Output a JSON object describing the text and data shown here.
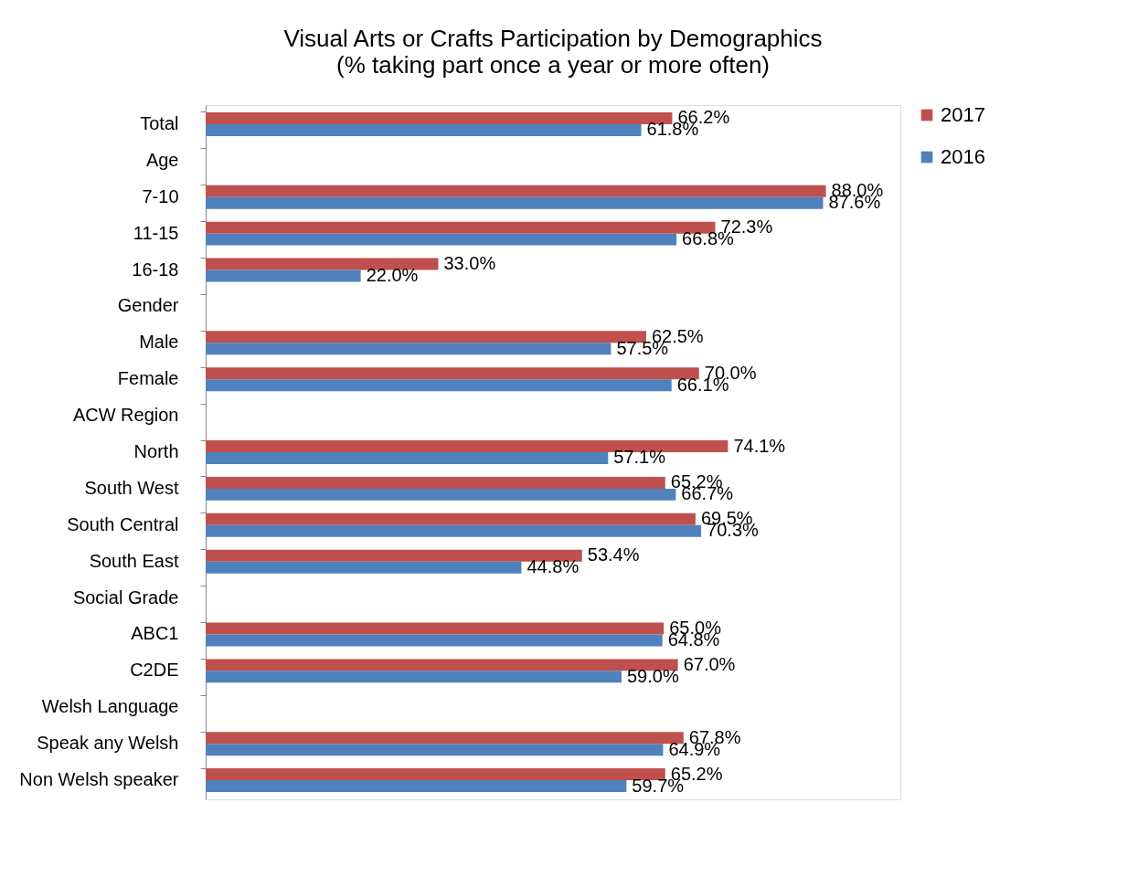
{
  "chart_data": {
    "type": "bar",
    "orientation": "horizontal",
    "title": "Visual Arts or Crafts Participation by Demographics",
    "subtitle": "(% taking part once a year or more often)",
    "categories": [
      "Total",
      "Age",
      "7-10",
      "11-15",
      "16-18",
      "Gender",
      "Male",
      "Female",
      "ACW Region",
      "North",
      "South West",
      "South Central",
      "South East",
      "Social Grade",
      "ABC1",
      "C2DE",
      "Welsh Language",
      "Speak any Welsh",
      "Non Welsh speaker"
    ],
    "series": [
      {
        "name": "2017",
        "color": "#c0504d",
        "values": [
          66.2,
          null,
          88.0,
          72.3,
          33.0,
          null,
          62.5,
          70.0,
          null,
          74.1,
          65.2,
          69.5,
          53.4,
          null,
          65.0,
          67.0,
          null,
          67.8,
          65.2
        ],
        "value_labels": [
          "66.2%",
          null,
          "88.0%",
          "72.3%",
          "33.0%",
          null,
          "62.5%",
          "70.0%",
          null,
          "74.1%",
          "65.2%",
          "69.5%",
          "53.4%",
          null,
          "65.0%",
          "67.0%",
          null,
          "67.8%",
          "65.2%"
        ]
      },
      {
        "name": "2016",
        "color": "#4f81bd",
        "values": [
          61.8,
          null,
          87.6,
          66.8,
          22.0,
          null,
          57.5,
          66.1,
          null,
          57.1,
          66.7,
          70.3,
          44.8,
          null,
          64.8,
          59.0,
          null,
          64.9,
          59.7
        ],
        "value_labels": [
          "61.8%",
          null,
          "87.6%",
          "66.8%",
          "22.0%",
          null,
          "57.5%",
          "66.1%",
          null,
          "57.1%",
          "66.7%",
          "70.3%",
          "44.8%",
          null,
          "64.8%",
          "59.0%",
          null,
          "64.9%",
          "59.7%"
        ]
      }
    ],
    "legend": "right",
    "grid": false
  }
}
